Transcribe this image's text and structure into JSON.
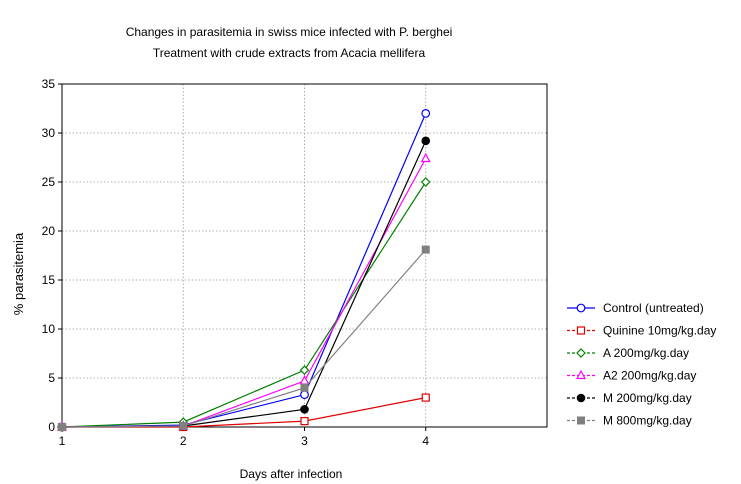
{
  "chart_data": {
    "type": "line",
    "title": "Changes in parasitemia in swiss mice infected with P. berghei",
    "subtitle": "Treatment with crude extracts from Acacia mellifera",
    "xlabel": "Days after infection",
    "ylabel": "% parasitemia",
    "xlim": [
      1,
      5
    ],
    "ylim": [
      0,
      35
    ],
    "xticks": [
      "1",
      "2",
      "3",
      "4"
    ],
    "yticks": [
      "0",
      "5",
      "10",
      "15",
      "20",
      "25",
      "30",
      "35"
    ],
    "grid": true,
    "legend_position": "right",
    "x": [
      1,
      2,
      3,
      4
    ],
    "series": [
      {
        "name": "Control (untreated)",
        "values": [
          0,
          0.2,
          3.3,
          32.0
        ],
        "color": "#0000ff",
        "marker": "circle-open"
      },
      {
        "name": "Quinine 10mg/kg.day",
        "values": [
          0,
          0,
          0.6,
          3.0
        ],
        "color": "#e00000",
        "marker": "square-open"
      },
      {
        "name": "A 200mg/kg.day",
        "values": [
          0,
          0.5,
          5.8,
          25.0
        ],
        "color": "#008000",
        "marker": "diamond-open"
      },
      {
        "name": "A2 200mg/kg.day",
        "values": [
          0,
          0.1,
          4.7,
          27.4
        ],
        "color": "#ff00ff",
        "marker": "triangle-open"
      },
      {
        "name": "M 200mg/kg.day",
        "values": [
          0,
          0.1,
          1.8,
          29.2
        ],
        "color": "#000000",
        "marker": "circle-filled"
      },
      {
        "name": "M 800mg/kg.day",
        "values": [
          0,
          0.1,
          4.0,
          18.1
        ],
        "color": "#808080",
        "marker": "square-filled"
      }
    ]
  }
}
